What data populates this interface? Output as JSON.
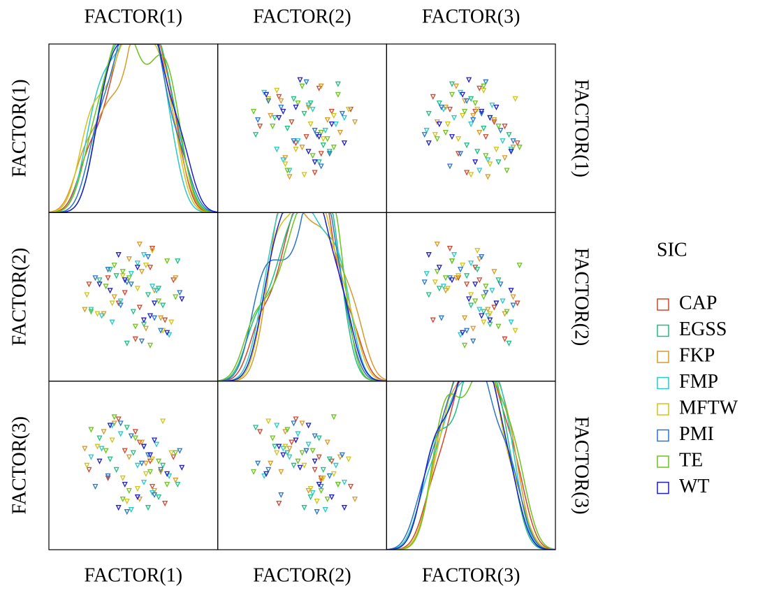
{
  "chart_data": {
    "type": "scatter_matrix",
    "variables": [
      "FACTOR(1)",
      "FACTOR(2)",
      "FACTOR(3)"
    ],
    "xlim": [
      -4,
      4
    ],
    "ylim": [
      -4,
      4
    ],
    "legend_title": "SIC",
    "legend": "right",
    "series": [
      {
        "name": "CAP",
        "color": "#d0462c",
        "factors": [
          [
            0.3,
            -1.2,
            0.8,
            1.5,
            -0.4,
            0.1,
            -2.1,
            0.9,
            -0.7,
            1.9
          ],
          [
            -0.5,
            0.9,
            1.4,
            -1.1,
            0.2,
            -2.0,
            0.6,
            2.3,
            -0.3,
            0.8
          ],
          [
            1.1,
            -0.6,
            0.2,
            -1.8,
            0.7,
            1.6,
            -0.2,
            -1.0,
            2.2,
            0.4
          ]
        ]
      },
      {
        "name": "EGSS",
        "color": "#1dbf80",
        "factors": [
          [
            -0.8,
            0.5,
            1.2,
            -1.6,
            0.0,
            2.1,
            -0.3,
            0.7,
            -1.1,
            1.4
          ],
          [
            1.0,
            -1.3,
            0.4,
            0.8,
            -0.7,
            1.7,
            -2.2,
            0.1,
            1.3,
            -0.4
          ],
          [
            -0.2,
            0.9,
            -1.5,
            1.3,
            0.6,
            -0.9,
            1.8,
            -2.0,
            0.3,
            0.0
          ]
        ]
      },
      {
        "name": "FKP",
        "color": "#d89a2a",
        "factors": [
          [
            1.0,
            -0.2,
            -1.4,
            0.6,
            2.0,
            -0.9,
            0.3,
            -2.3,
            1.3,
            0.4
          ],
          [
            0.3,
            1.8,
            -0.8,
            -1.5,
            0.9,
            0.0,
            2.5,
            -0.6,
            -1.0,
            1.2
          ],
          [
            -1.2,
            0.4,
            1.6,
            0.1,
            -0.7,
            2.0,
            -1.6,
            0.8,
            -0.3,
            1.1
          ]
        ]
      },
      {
        "name": "FMP",
        "color": "#27c9c9",
        "factors": [
          [
            -1.5,
            0.9,
            0.2,
            -0.6,
            1.7,
            -0.1,
            1.1,
            -2.0,
            0.5,
            -1.0
          ],
          [
            -0.9,
            0.5,
            1.6,
            -0.2,
            -1.8,
            1.1,
            0.3,
            -0.6,
            2.0,
            -1.2
          ],
          [
            0.8,
            -1.3,
            0.0,
            1.5,
            -0.5,
            -2.1,
            1.0,
            0.4,
            -0.8,
            1.9
          ]
        ]
      },
      {
        "name": "MFTW",
        "color": "#d2c319",
        "factors": [
          [
            0.6,
            -1.0,
            1.8,
            -0.3,
            0.9,
            -1.7,
            0.2,
            1.4,
            -0.5,
            -2.2
          ],
          [
            1.5,
            -0.3,
            -1.2,
            0.7,
            2.2,
            -0.8,
            0.4,
            -1.6,
            1.0,
            0.1
          ],
          [
            -0.4,
            1.2,
            0.6,
            -1.7,
            0.3,
            0.9,
            -1.1,
            2.1,
            -0.6,
            0.0
          ]
        ]
      },
      {
        "name": "PMI",
        "color": "#2a75c9",
        "factors": [
          [
            -0.1,
            1.3,
            -1.8,
            0.7,
            -0.6,
            1.0,
            2.2,
            -1.2,
            0.4,
            -0.3
          ],
          [
            0.6,
            -1.6,
            0.9,
            1.9,
            -0.4,
            -1.0,
            0.2,
            1.3,
            -2.1,
            0.7
          ],
          [
            1.4,
            -0.2,
            -1.0,
            0.5,
            2.0,
            -1.4,
            0.7,
            -0.5,
            0.1,
            -2.2
          ]
        ]
      },
      {
        "name": "TE",
        "color": "#6cc21e",
        "factors": [
          [
            1.2,
            -0.5,
            0.1,
            -1.3,
            1.6,
            -2.0,
            0.8,
            -0.2,
            2.0,
            -0.9
          ],
          [
            -0.2,
            1.2,
            -1.4,
            0.5,
            1.7,
            -0.7,
            -2.3,
            0.9,
            0.0,
            1.5
          ],
          [
            0.2,
            -1.6,
            1.3,
            0.7,
            -0.9,
            1.7,
            -0.3,
            -1.2,
            0.6,
            2.3
          ]
        ]
      },
      {
        "name": "WT",
        "color": "#1c1ccc",
        "factors": [
          [
            -0.4,
            0.8,
            -1.1,
            1.6,
            0.2,
            -1.6,
            1.0,
            -0.7,
            0.5,
            2.3
          ],
          [
            0.8,
            -0.9,
            0.3,
            -1.7,
            1.4,
            0.6,
            -0.3,
            2.0,
            -1.1,
            -0.1
          ],
          [
            -0.9,
            0.5,
            1.9,
            -0.4,
            -1.5,
            0.2,
            1.2,
            -2.0,
            0.9,
            -0.1
          ]
        ]
      }
    ]
  }
}
